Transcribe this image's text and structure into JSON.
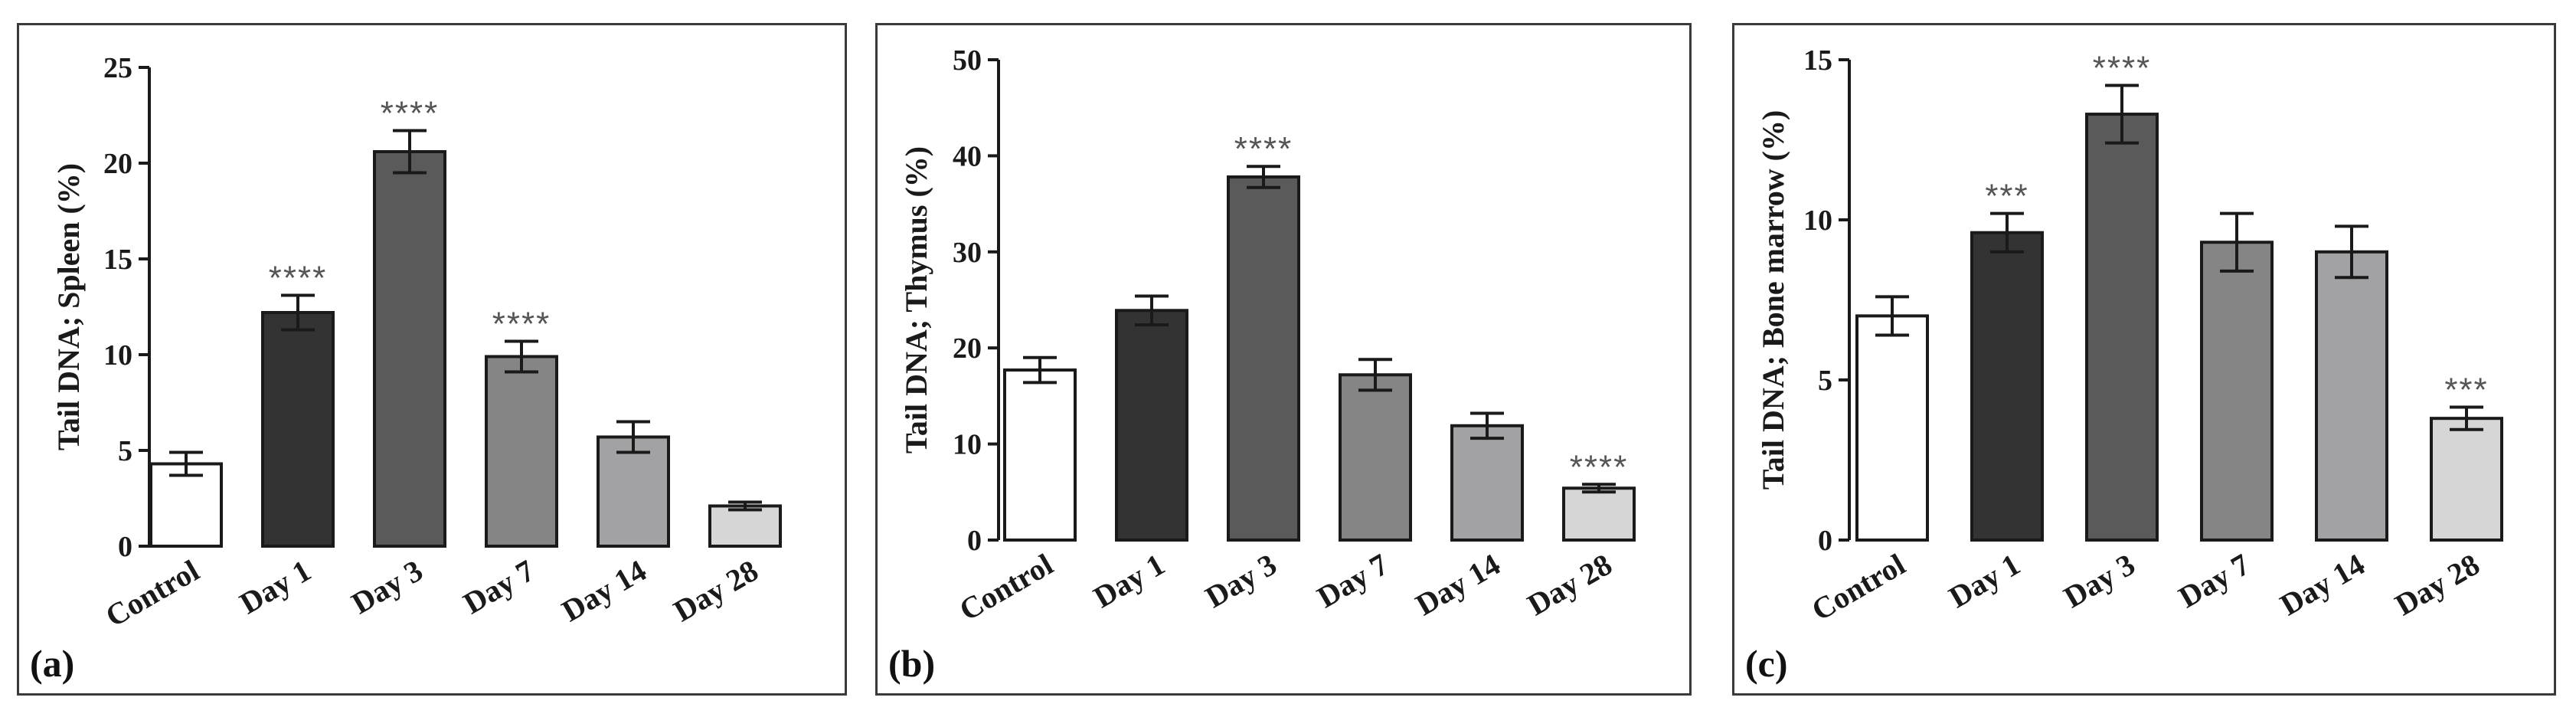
{
  "chart_data": [
    {
      "type": "bar",
      "panel_label": "(a)",
      "ylabel": "Tail DNA; Spleen (%)",
      "ylim": [
        0,
        25
      ],
      "yticks": [
        0,
        5,
        10,
        15,
        20,
        25
      ],
      "categories": [
        "Control",
        "Day 1",
        "Day 3",
        "Day 7",
        "Day 14",
        "Day 28"
      ],
      "values": [
        4.3,
        12.2,
        20.6,
        9.9,
        5.7,
        2.1
      ],
      "errors": [
        0.6,
        0.9,
        1.1,
        0.8,
        0.8,
        0.2
      ],
      "annotations": [
        "",
        "****",
        "****",
        "****",
        "",
        ""
      ],
      "colors": [
        "#ffffff",
        "#333333",
        "#5a5a5a",
        "#858585",
        "#a2a2a5",
        "#d6d6d6"
      ]
    },
    {
      "type": "bar",
      "panel_label": "(b)",
      "ylabel": "Tail DNA; Thymus (%)",
      "ylim": [
        0,
        50
      ],
      "yticks": [
        0,
        10,
        20,
        30,
        40,
        50
      ],
      "categories": [
        "Control",
        "Day 1",
        "Day 3",
        "Day 7",
        "Day 14",
        "Day 28"
      ],
      "values": [
        17.7,
        23.9,
        37.8,
        17.2,
        11.9,
        5.4
      ],
      "errors": [
        1.3,
        1.5,
        1.1,
        1.6,
        1.3,
        0.4
      ],
      "annotations": [
        "",
        "",
        "****",
        "",
        "",
        "****"
      ],
      "colors": [
        "#ffffff",
        "#333333",
        "#5a5a5a",
        "#858585",
        "#a2a2a5",
        "#d6d6d6"
      ]
    },
    {
      "type": "bar",
      "panel_label": "(c)",
      "ylabel": "Tail DNA; Bone marrow (%)",
      "ylim": [
        0,
        15
      ],
      "yticks": [
        0,
        5,
        10,
        15
      ],
      "categories": [
        "Control",
        "Day 1",
        "Day 3",
        "Day 7",
        "Day 14",
        "Day 28"
      ],
      "values": [
        7.0,
        9.6,
        13.3,
        9.3,
        9.0,
        3.8
      ],
      "errors": [
        0.6,
        0.6,
        0.9,
        0.9,
        0.8,
        0.35
      ],
      "annotations": [
        "",
        "***",
        "****",
        "",
        "",
        "***"
      ],
      "colors": [
        "#ffffff",
        "#333333",
        "#5a5a5a",
        "#858585",
        "#a2a2a5",
        "#d6d6d6"
      ]
    }
  ]
}
